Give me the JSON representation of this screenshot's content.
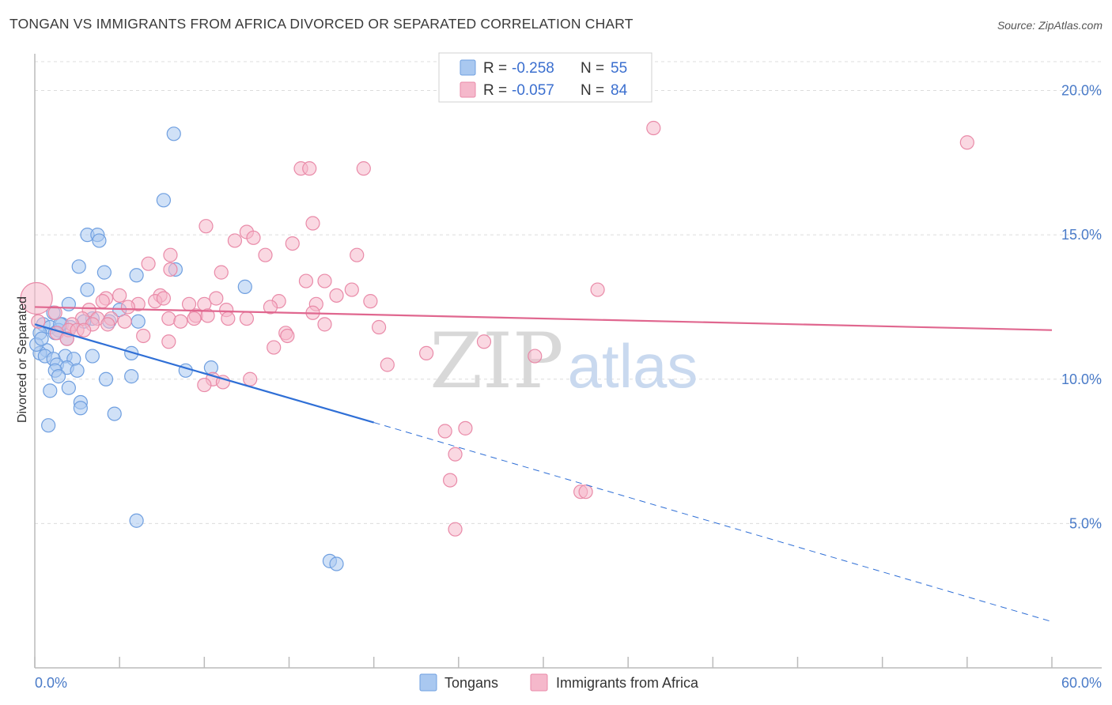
{
  "title": "TONGAN VS IMMIGRANTS FROM AFRICA DIVORCED OR SEPARATED CORRELATION CHART",
  "source": "Source: ZipAtlas.com",
  "watermark": {
    "zip": "ZIP",
    "atlas": "atlas"
  },
  "legend": {
    "rows": [
      {
        "r_label": "R =",
        "r_value": "-0.258",
        "n_label": "N =",
        "n_value": "55",
        "color": "#a9c8f0"
      },
      {
        "r_label": "R =",
        "r_value": "-0.057",
        "n_label": "N =",
        "n_value": "84",
        "color": "#f5b8cb"
      }
    ]
  },
  "bottom_legend": [
    {
      "label": "Tongans",
      "color": "#a9c8f0"
    },
    {
      "label": "Immigrants from Africa",
      "color": "#f5b8cb"
    }
  ],
  "chart_data": {
    "type": "scatter",
    "ylabel": "Divorced or Separated",
    "xlim": [
      0,
      60
    ],
    "ylim": [
      0,
      21
    ],
    "x_tick_labels": [
      {
        "value": 0,
        "label": "0.0%"
      },
      {
        "value": 60,
        "label": "60.0%"
      }
    ],
    "y_tick_labels": [
      {
        "value": 5,
        "label": "5.0%"
      },
      {
        "value": 10,
        "label": "10.0%"
      },
      {
        "value": 15,
        "label": "15.0%"
      },
      {
        "value": 20,
        "label": "20.0%"
      }
    ],
    "grid": true,
    "series": [
      {
        "name": "Tongans",
        "color": "#6f9fe0",
        "fill": "#a9c8f0",
        "trend": {
          "x0": 0,
          "y0": 11.9,
          "x1": 20,
          "y1": 8.5,
          "dash_to_x": 60,
          "dash_to_y": 1.6,
          "color": "#2f6fd6"
        },
        "points": [
          [
            8.2,
            18.5
          ],
          [
            7.6,
            16.2
          ],
          [
            3.1,
            15.0
          ],
          [
            3.7,
            15.0
          ],
          [
            3.8,
            14.8
          ],
          [
            2.6,
            13.9
          ],
          [
            4.1,
            13.7
          ],
          [
            6.0,
            13.6
          ],
          [
            8.3,
            13.8
          ],
          [
            12.4,
            13.2
          ],
          [
            3.1,
            13.1
          ],
          [
            2.0,
            12.6
          ],
          [
            1.1,
            12.3
          ],
          [
            5.0,
            12.4
          ],
          [
            3.4,
            12.1
          ],
          [
            4.4,
            12.0
          ],
          [
            6.1,
            12.0
          ],
          [
            1.6,
            11.9
          ],
          [
            0.5,
            11.9
          ],
          [
            0.9,
            11.8
          ],
          [
            2.1,
            11.8
          ],
          [
            1.4,
            11.7
          ],
          [
            0.3,
            11.6
          ],
          [
            1.2,
            11.6
          ],
          [
            1.9,
            11.4
          ],
          [
            0.7,
            11.0
          ],
          [
            0.3,
            10.9
          ],
          [
            5.7,
            10.9
          ],
          [
            1.8,
            10.8
          ],
          [
            3.4,
            10.8
          ],
          [
            0.6,
            10.8
          ],
          [
            1.1,
            10.7
          ],
          [
            2.3,
            10.7
          ],
          [
            1.3,
            10.5
          ],
          [
            1.9,
            10.4
          ],
          [
            1.2,
            10.3
          ],
          [
            2.5,
            10.3
          ],
          [
            8.9,
            10.3
          ],
          [
            10.4,
            10.4
          ],
          [
            5.7,
            10.1
          ],
          [
            1.4,
            10.1
          ],
          [
            4.2,
            10.0
          ],
          [
            2.0,
            9.7
          ],
          [
            0.9,
            9.6
          ],
          [
            2.7,
            9.2
          ],
          [
            2.7,
            9.0
          ],
          [
            4.7,
            8.8
          ],
          [
            0.8,
            8.4
          ],
          [
            6.0,
            5.1
          ],
          [
            17.4,
            3.7
          ],
          [
            17.8,
            3.6
          ],
          [
            0.1,
            11.2
          ],
          [
            2.9,
            12.0
          ],
          [
            1.5,
            11.9
          ],
          [
            0.4,
            11.4
          ]
        ]
      },
      {
        "name": "Immigrants from Africa",
        "color": "#e98aa8",
        "fill": "#f5b8cb",
        "trend": {
          "x0": 0,
          "y0": 12.5,
          "x1": 60,
          "y1": 11.7,
          "color": "#e0678f"
        },
        "points": [
          [
            36.5,
            18.7
          ],
          [
            55.0,
            18.2
          ],
          [
            15.7,
            17.3
          ],
          [
            16.2,
            17.3
          ],
          [
            19.4,
            17.3
          ],
          [
            10.1,
            15.3
          ],
          [
            16.4,
            15.4
          ],
          [
            12.5,
            15.1
          ],
          [
            11.8,
            14.8
          ],
          [
            12.9,
            14.9
          ],
          [
            15.2,
            14.7
          ],
          [
            8.0,
            14.3
          ],
          [
            13.6,
            14.3
          ],
          [
            19.0,
            14.3
          ],
          [
            6.7,
            14.0
          ],
          [
            11.0,
            13.7
          ],
          [
            8.0,
            13.8
          ],
          [
            16.0,
            13.4
          ],
          [
            17.1,
            13.4
          ],
          [
            18.7,
            13.1
          ],
          [
            33.2,
            13.1
          ],
          [
            7.4,
            12.9
          ],
          [
            5.0,
            12.9
          ],
          [
            4.2,
            12.8
          ],
          [
            10.7,
            12.8
          ],
          [
            4.0,
            12.7
          ],
          [
            17.8,
            12.9
          ],
          [
            7.1,
            12.7
          ],
          [
            7.6,
            12.8
          ],
          [
            14.4,
            12.7
          ],
          [
            19.8,
            12.7
          ],
          [
            6.1,
            12.6
          ],
          [
            9.1,
            12.6
          ],
          [
            10.0,
            12.6
          ],
          [
            16.6,
            12.6
          ],
          [
            0.1,
            12.8
          ],
          [
            5.5,
            12.5
          ],
          [
            11.3,
            12.4
          ],
          [
            13.9,
            12.5
          ],
          [
            3.2,
            12.4
          ],
          [
            16.4,
            12.3
          ],
          [
            1.2,
            12.3
          ],
          [
            9.5,
            12.2
          ],
          [
            10.2,
            12.2
          ],
          [
            4.5,
            12.1
          ],
          [
            2.8,
            12.1
          ],
          [
            3.7,
            12.1
          ],
          [
            5.3,
            12.0
          ],
          [
            7.9,
            12.1
          ],
          [
            9.4,
            12.1
          ],
          [
            11.4,
            12.1
          ],
          [
            12.5,
            12.1
          ],
          [
            3.4,
            11.9
          ],
          [
            4.3,
            11.9
          ],
          [
            2.2,
            11.9
          ],
          [
            17.1,
            11.9
          ],
          [
            2.0,
            11.7
          ],
          [
            2.5,
            11.7
          ],
          [
            1.3,
            11.6
          ],
          [
            2.9,
            11.7
          ],
          [
            14.8,
            11.6
          ],
          [
            20.3,
            11.8
          ],
          [
            6.4,
            11.5
          ],
          [
            14.9,
            11.5
          ],
          [
            1.9,
            11.4
          ],
          [
            7.9,
            11.3
          ],
          [
            26.5,
            11.3
          ],
          [
            14.1,
            11.1
          ],
          [
            23.1,
            10.9
          ],
          [
            29.5,
            10.8
          ],
          [
            20.8,
            10.5
          ],
          [
            10.5,
            10.0
          ],
          [
            12.7,
            10.0
          ],
          [
            10.0,
            9.8
          ],
          [
            11.1,
            9.9
          ],
          [
            24.2,
            8.2
          ],
          [
            25.4,
            8.3
          ],
          [
            24.8,
            7.4
          ],
          [
            24.5,
            6.5
          ],
          [
            32.2,
            6.1
          ],
          [
            32.5,
            6.1
          ],
          [
            24.8,
            4.8
          ],
          [
            0.2,
            12.0
          ],
          [
            8.6,
            12.0
          ]
        ]
      }
    ]
  }
}
